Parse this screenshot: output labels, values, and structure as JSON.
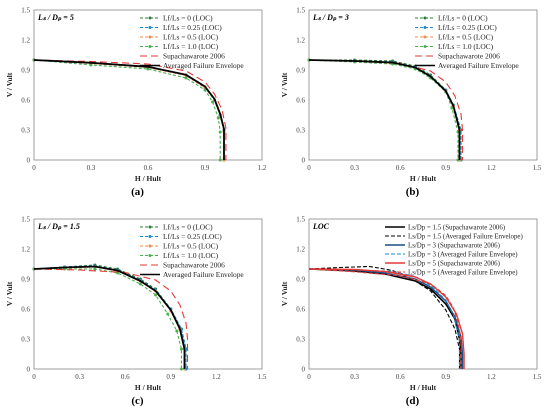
{
  "chart_data": [
    {
      "type": "line",
      "panel_label": "(a)",
      "ratio_text": "Lₛ / Dₚ = 5",
      "xlabel": "H / Hult",
      "ylabel": "V / Vult",
      "xlim": [
        0,
        1.2
      ],
      "ylim": [
        0,
        1.5
      ],
      "xticks": [
        "0",
        "0.3",
        "0.6",
        "0.9",
        "1.2"
      ],
      "yticks": [
        "0",
        "0.3",
        "0.6",
        "0.9",
        "1.2",
        "1.5"
      ],
      "legend_position": "top-right",
      "series": [
        {
          "name": "Lf/Ls = 0 (LOC)",
          "color": "#2e7d32",
          "dash": "3,2",
          "marker": "dot",
          "x": [
            0,
            0.3,
            0.6,
            0.8,
            0.9,
            0.95,
            0.98,
            1.0,
            1.0
          ],
          "y": [
            1.0,
            0.975,
            0.935,
            0.85,
            0.73,
            0.6,
            0.45,
            0.3,
            0
          ]
        },
        {
          "name": "Lf/Ls = 0.25 (LOC)",
          "color": "#1e88c8",
          "dash": "3,2",
          "marker": "dot",
          "x": [
            0,
            0.3,
            0.6,
            0.8,
            0.9,
            0.95,
            0.98,
            1.0,
            1.0
          ],
          "y": [
            1.0,
            0.97,
            0.93,
            0.85,
            0.72,
            0.6,
            0.45,
            0.3,
            0
          ]
        },
        {
          "name": "Lf/Ls = 0.5 (LOC)",
          "color": "#f08a4b",
          "dash": "3,2",
          "marker": "dot",
          "x": [
            0,
            0.3,
            0.6,
            0.8,
            0.9,
            0.95,
            0.98,
            1.0,
            1.0
          ],
          "y": [
            1.0,
            0.965,
            0.925,
            0.845,
            0.72,
            0.6,
            0.44,
            0.28,
            0
          ]
        },
        {
          "name": "Lf/Ls = 1.0 (LOC)",
          "color": "#4caf50",
          "dash": "3,2",
          "marker": "dot",
          "x": [
            0,
            0.3,
            0.6,
            0.8,
            0.9,
            0.94,
            0.97,
            0.98,
            0.98
          ],
          "y": [
            1.0,
            0.95,
            0.91,
            0.82,
            0.7,
            0.58,
            0.42,
            0.28,
            0
          ]
        },
        {
          "name": "Supachawarote 2006",
          "color": "#e53935",
          "dash": "7,4",
          "marker": "none",
          "x": [
            0,
            0.3,
            0.6,
            0.8,
            0.9,
            0.95,
            0.99,
            1.01,
            1.01
          ],
          "y": [
            1.0,
            0.985,
            0.96,
            0.89,
            0.78,
            0.66,
            0.5,
            0.32,
            0
          ]
        },
        {
          "name": "Averaged Failure Envelope",
          "color": "#000000",
          "dash": "",
          "marker": "none",
          "width": 1.8,
          "x": [
            0,
            0.3,
            0.6,
            0.8,
            0.9,
            0.95,
            0.98,
            1.0,
            1.0
          ],
          "y": [
            1.0,
            0.972,
            0.932,
            0.852,
            0.735,
            0.61,
            0.46,
            0.31,
            0
          ]
        }
      ]
    },
    {
      "type": "line",
      "panel_label": "(b)",
      "ratio_text": "Lₛ / Dₚ = 3",
      "xlabel": "H / Hult",
      "ylabel": "V / Vult",
      "xlim": [
        0,
        1.5
      ],
      "ylim": [
        0,
        1.5
      ],
      "xticks": [
        "0",
        "0.3",
        "0.6",
        "0.9",
        "1.2",
        "1.5"
      ],
      "yticks": [
        "0",
        "0.3",
        "0.6",
        "0.9",
        "1.2",
        "1.5"
      ],
      "legend_position": "top-right",
      "series": [
        {
          "name": "Lf/Ls = 0 (LOC)",
          "color": "#2e7d32",
          "dash": "3,2",
          "marker": "dot",
          "x": [
            0,
            0.3,
            0.55,
            0.7,
            0.8,
            0.9,
            0.95,
            1.0,
            1.0
          ],
          "y": [
            1.0,
            1.0,
            0.99,
            0.94,
            0.85,
            0.7,
            0.55,
            0.3,
            0
          ]
        },
        {
          "name": "Lf/Ls = 0.25 (LOC)",
          "color": "#1e88c8",
          "dash": "3,2",
          "marker": "dot",
          "x": [
            0,
            0.3,
            0.55,
            0.7,
            0.8,
            0.9,
            0.95,
            1.0,
            1.0
          ],
          "y": [
            1.0,
            0.99,
            0.98,
            0.93,
            0.84,
            0.7,
            0.55,
            0.3,
            0
          ]
        },
        {
          "name": "Lf/Ls = 0.5 (LOC)",
          "color": "#f08a4b",
          "dash": "3,2",
          "marker": "dot",
          "x": [
            0,
            0.3,
            0.55,
            0.7,
            0.8,
            0.9,
            0.95,
            0.99,
            0.99
          ],
          "y": [
            1.0,
            0.985,
            0.97,
            0.92,
            0.83,
            0.69,
            0.54,
            0.3,
            0
          ]
        },
        {
          "name": "Lf/Ls = 1.0 (LOC)",
          "color": "#4caf50",
          "dash": "3,2",
          "marker": "dot",
          "x": [
            0,
            0.3,
            0.55,
            0.7,
            0.8,
            0.9,
            0.94,
            0.98,
            0.98
          ],
          "y": [
            1.0,
            0.98,
            0.96,
            0.91,
            0.82,
            0.68,
            0.52,
            0.28,
            0
          ]
        },
        {
          "name": "Supachawarote 2006",
          "color": "#e53935",
          "dash": "7,4",
          "marker": "none",
          "x": [
            0,
            0.3,
            0.6,
            0.8,
            0.9,
            0.96,
            1.0,
            1.01,
            1.01
          ],
          "y": [
            1.0,
            0.99,
            0.965,
            0.89,
            0.78,
            0.64,
            0.46,
            0.3,
            0
          ]
        },
        {
          "name": "Averaged Failure Envelope",
          "color": "#000000",
          "dash": "",
          "marker": "none",
          "width": 1.8,
          "x": [
            0,
            0.3,
            0.55,
            0.7,
            0.8,
            0.9,
            0.95,
            0.99,
            0.99
          ],
          "y": [
            1.0,
            0.99,
            0.975,
            0.925,
            0.835,
            0.69,
            0.54,
            0.3,
            0
          ]
        }
      ]
    },
    {
      "type": "line",
      "panel_label": "(c)",
      "ratio_text": "Lₛ / Dₚ = 1.5",
      "xlabel": "H / Hult",
      "ylabel": "V / Vult",
      "xlim": [
        0,
        1.5
      ],
      "ylim": [
        0,
        1.5
      ],
      "xticks": [
        "0",
        "0.3",
        "0.6",
        "0.9",
        "1.2",
        "1.5"
      ],
      "yticks": [
        "0",
        "0.3",
        "0.6",
        "0.9",
        "1.2",
        "1.5"
      ],
      "legend_position": "top-right",
      "series": [
        {
          "name": "Lf/Ls = 0 (LOC)",
          "color": "#2e7d32",
          "dash": "3,2",
          "marker": "dot",
          "x": [
            0,
            0.2,
            0.4,
            0.55,
            0.7,
            0.8,
            0.9,
            0.97,
            1.0,
            1.0
          ],
          "y": [
            1.0,
            1.02,
            1.04,
            1.0,
            0.9,
            0.8,
            0.6,
            0.4,
            0.2,
            0
          ]
        },
        {
          "name": "Lf/Ls = 0.25 (LOC)",
          "color": "#1e88c8",
          "dash": "3,2",
          "marker": "dot",
          "x": [
            0,
            0.2,
            0.4,
            0.55,
            0.7,
            0.8,
            0.9,
            0.97,
            1.0,
            1.0
          ],
          "y": [
            1.0,
            1.02,
            1.03,
            0.99,
            0.89,
            0.79,
            0.6,
            0.4,
            0.2,
            0
          ]
        },
        {
          "name": "Lf/Ls = 0.5 (LOC)",
          "color": "#f08a4b",
          "dash": "3,2",
          "marker": "dot",
          "x": [
            0,
            0.2,
            0.4,
            0.55,
            0.7,
            0.8,
            0.9,
            0.96,
            0.99,
            0.99
          ],
          "y": [
            1.0,
            1.01,
            1.02,
            0.98,
            0.88,
            0.78,
            0.58,
            0.4,
            0.2,
            0
          ]
        },
        {
          "name": "Lf/Ls = 1.0 (LOC)",
          "color": "#4caf50",
          "dash": "3,2",
          "marker": "dot",
          "x": [
            0,
            0.2,
            0.4,
            0.55,
            0.7,
            0.8,
            0.88,
            0.94,
            0.97,
            0.97
          ],
          "y": [
            1.0,
            1.0,
            1.0,
            0.96,
            0.85,
            0.74,
            0.55,
            0.38,
            0.2,
            0
          ]
        },
        {
          "name": "Supachawarote 2006",
          "color": "#e53935",
          "dash": "7,4",
          "marker": "none",
          "x": [
            0,
            0.3,
            0.6,
            0.8,
            0.9,
            0.96,
            1.0,
            1.01,
            1.01
          ],
          "y": [
            1.0,
            0.99,
            0.965,
            0.89,
            0.78,
            0.64,
            0.46,
            0.3,
            0
          ]
        },
        {
          "name": "Averaged Failure Envelope",
          "color": "#000000",
          "dash": "",
          "marker": "none",
          "width": 1.8,
          "x": [
            0,
            0.2,
            0.4,
            0.55,
            0.7,
            0.8,
            0.9,
            0.96,
            0.99,
            0.99
          ],
          "y": [
            1.0,
            1.015,
            1.025,
            0.985,
            0.88,
            0.78,
            0.59,
            0.4,
            0.2,
            0
          ]
        }
      ]
    },
    {
      "type": "line",
      "panel_label": "(d)",
      "ratio_text": "LOC",
      "xlabel": "H / Hult",
      "ylabel": "V / Vult",
      "xlim": [
        0,
        1.5
      ],
      "ylim": [
        0,
        1.5
      ],
      "xticks": [
        "0",
        "0.3",
        "0.6",
        "0.9",
        "1.2",
        "1.5"
      ],
      "yticks": [
        "0",
        "0.3",
        "0.6",
        "0.9",
        "1.2",
        "1.5"
      ],
      "legend_position": "top-right",
      "series": [
        {
          "name": "Ls/Dp = 1.5 (Supachawarote 2006)",
          "color": "#000000",
          "dash": "",
          "marker": "none",
          "width": 1.6,
          "x": [
            0,
            0.3,
            0.5,
            0.7,
            0.8,
            0.9,
            0.96,
            0.99,
            1.0,
            1.0
          ],
          "y": [
            1.0,
            0.98,
            0.95,
            0.88,
            0.8,
            0.65,
            0.5,
            0.3,
            0.15,
            0
          ]
        },
        {
          "name": "Ls/Dp = 1.5 (Averaged Failure Envelope)",
          "color": "#000000",
          "dash": "4,2",
          "marker": "none",
          "x": [
            0,
            0.2,
            0.4,
            0.55,
            0.7,
            0.8,
            0.9,
            0.96,
            0.99,
            0.99
          ],
          "y": [
            1.0,
            1.015,
            1.025,
            0.985,
            0.88,
            0.78,
            0.59,
            0.4,
            0.2,
            0
          ]
        },
        {
          "name": "Ls/Dp = 3 (Supachawarote 2006)",
          "color": "#1a4f8a",
          "dash": "",
          "marker": "none",
          "width": 1.4,
          "x": [
            0,
            0.3,
            0.5,
            0.7,
            0.8,
            0.9,
            0.96,
            1.0,
            1.01,
            1.01
          ],
          "y": [
            1.0,
            0.99,
            0.96,
            0.9,
            0.82,
            0.68,
            0.52,
            0.32,
            0.15,
            0
          ]
        },
        {
          "name": "Ls/Dp = 3 (Averaged Failure Envelope)",
          "color": "#1e88c8",
          "dash": "4,2",
          "marker": "none",
          "x": [
            0,
            0.3,
            0.55,
            0.7,
            0.8,
            0.9,
            0.95,
            0.99,
            0.99
          ],
          "y": [
            1.0,
            0.99,
            0.975,
            0.925,
            0.835,
            0.69,
            0.54,
            0.3,
            0
          ]
        },
        {
          "name": "Ls/Dp = 5 (Supachawarote 2006)",
          "color": "#e53935",
          "dash": "",
          "marker": "none",
          "width": 1.4,
          "x": [
            0,
            0.3,
            0.5,
            0.7,
            0.8,
            0.9,
            0.97,
            1.01,
            1.02,
            1.02
          ],
          "y": [
            1.0,
            0.995,
            0.975,
            0.92,
            0.85,
            0.72,
            0.55,
            0.35,
            0.15,
            0
          ]
        },
        {
          "name": "Ls/Dp = 5 (Averaged Failure Envelope)",
          "color": "#e53935",
          "dash": "4,2",
          "marker": "none",
          "x": [
            0,
            0.3,
            0.6,
            0.8,
            0.9,
            0.95,
            0.98,
            1.0,
            1.0
          ],
          "y": [
            1.0,
            0.972,
            0.932,
            0.852,
            0.735,
            0.61,
            0.46,
            0.31,
            0
          ]
        }
      ]
    }
  ]
}
